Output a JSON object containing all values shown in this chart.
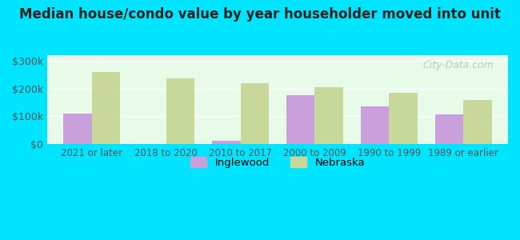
{
  "title": "Median house/condo value by year householder moved into unit",
  "categories": [
    "2021 or later",
    "2018 to 2020",
    "2010 to 2017",
    "2000 to 2009",
    "1990 to 1999",
    "1989 or earlier"
  ],
  "inglewood_values": [
    110000,
    0,
    12000,
    175000,
    135000,
    105000
  ],
  "nebraska_values": [
    258000,
    235000,
    220000,
    205000,
    185000,
    158000
  ],
  "inglewood_color": "#c9a0dc",
  "nebraska_color": "#c8d89a",
  "background_color": "#e8fae8",
  "outer_background": "#00e5ff",
  "ylabel_ticks": [
    "$0",
    "$100k",
    "$200k",
    "$300k"
  ],
  "ytick_values": [
    0,
    100000,
    200000,
    300000
  ],
  "ylim": [
    0,
    320000
  ],
  "bar_width": 0.38,
  "watermark": "City-Data.com",
  "legend_labels": [
    "Inglewood",
    "Nebraska"
  ]
}
